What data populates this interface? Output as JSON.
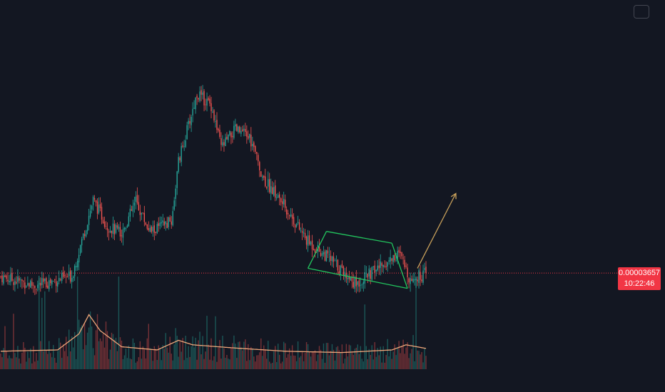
{
  "chart_data": {
    "type": "candlestick",
    "series_seed": 7,
    "bar_count": 300,
    "title": "",
    "xlabel": "",
    "ylabel": "",
    "last_price": "0.00003657",
    "countdown": "10:22:46",
    "price_path": [
      [
        0,
        3.625e-05
      ],
      [
        25,
        3.545e-05
      ],
      [
        50,
        3.63e-05
      ],
      [
        65,
        4.31e-05
      ],
      [
        75,
        4.08e-05
      ],
      [
        85,
        4.01e-05
      ],
      [
        95,
        4.3e-05
      ],
      [
        105,
        4.025e-05
      ],
      [
        120,
        4.12e-05
      ],
      [
        125,
        4.65e-05
      ],
      [
        138,
        5.26e-05
      ],
      [
        148,
        5.16e-05
      ],
      [
        155,
        4.78e-05
      ],
      [
        165,
        4.94e-05
      ],
      [
        175,
        4.87e-05
      ],
      [
        185,
        4.5e-05
      ],
      [
        200,
        4.25e-05
      ],
      [
        215,
        3.95e-05
      ],
      [
        230,
        3.8e-05
      ],
      [
        250,
        3.56e-05
      ],
      [
        265,
        3.7e-05
      ],
      [
        280,
        3.83e-05
      ],
      [
        288,
        3.6e-05
      ],
      [
        300,
        3.657e-05
      ]
    ],
    "volume_ma_path": [
      [
        0,
        28
      ],
      [
        40,
        30
      ],
      [
        55,
        55
      ],
      [
        62,
        85
      ],
      [
        70,
        60
      ],
      [
        85,
        35
      ],
      [
        110,
        30
      ],
      [
        125,
        45
      ],
      [
        135,
        38
      ],
      [
        165,
        33
      ],
      [
        200,
        28
      ],
      [
        240,
        26
      ],
      [
        275,
        30
      ],
      [
        285,
        38
      ],
      [
        300,
        32
      ]
    ],
    "drawings": {
      "channel": [
        {
          "from": [
            229,
            4.03e-05
          ],
          "to": [
            275,
            3.925e-05
          ],
          "color": "#22c55e"
        },
        {
          "from": [
            216,
            3.7e-05
          ],
          "to": [
            286,
            3.52e-05
          ],
          "color": "#22c55e"
        }
      ],
      "arrow": {
        "from": [
          293,
          3.7e-05
        ],
        "to": [
          320,
          4.37e-05
        ],
        "color": "#c9a15b"
      }
    },
    "colors": {
      "up": "#26a69a",
      "down": "#ef5350",
      "background": "#131722",
      "price_line": "#f23645",
      "volume_ma": "#f0a77a"
    }
  }
}
